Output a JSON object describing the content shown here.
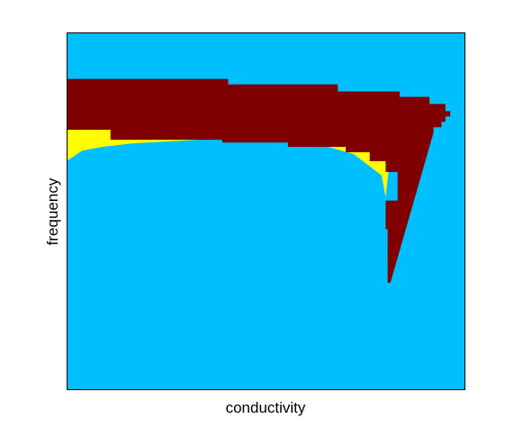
{
  "chart_data": {
    "type": "heatmap",
    "title": "",
    "xlabel": "conductivity",
    "ylabel": "frequency",
    "grid": false,
    "legend": "none",
    "colors": {
      "background_region": "#00bfff",
      "dark_region": "#800000",
      "yellow_region": "#ffff00",
      "axes_frame": "#000000"
    },
    "dark_region_top_steps": [
      [
        0.0,
        0.13
      ],
      [
        0.405,
        0.145
      ],
      [
        0.68,
        0.165
      ],
      [
        0.835,
        0.18
      ],
      [
        0.91,
        0.2
      ],
      [
        0.95,
        0.22
      ],
      [
        0.962,
        0.235
      ],
      [
        0.95,
        0.25
      ],
      [
        0.94,
        0.265
      ],
      [
        0.92,
        0.28
      ]
    ],
    "dark_region_bottom_steps": [
      [
        0.0,
        0.29
      ],
      [
        0.11,
        0.272
      ],
      [
        0.39,
        0.3
      ],
      [
        0.555,
        0.308
      ],
      [
        0.7,
        0.32
      ],
      [
        0.76,
        0.335
      ],
      [
        0.8,
        0.36
      ],
      [
        0.83,
        0.39
      ],
      [
        0.8,
        0.47
      ],
      [
        0.805,
        0.55
      ],
      [
        0.808,
        0.7
      ]
    ],
    "yellow_band_steps": [
      [
        0.0,
        0.36
      ],
      [
        0.04,
        0.33
      ],
      [
        0.09,
        0.32
      ],
      [
        0.165,
        0.31
      ],
      [
        0.33,
        0.3
      ],
      [
        0.555,
        0.295
      ],
      [
        0.65,
        0.318
      ],
      [
        0.72,
        0.34
      ],
      [
        0.79,
        0.4
      ],
      [
        0.8,
        0.46
      ]
    ]
  }
}
